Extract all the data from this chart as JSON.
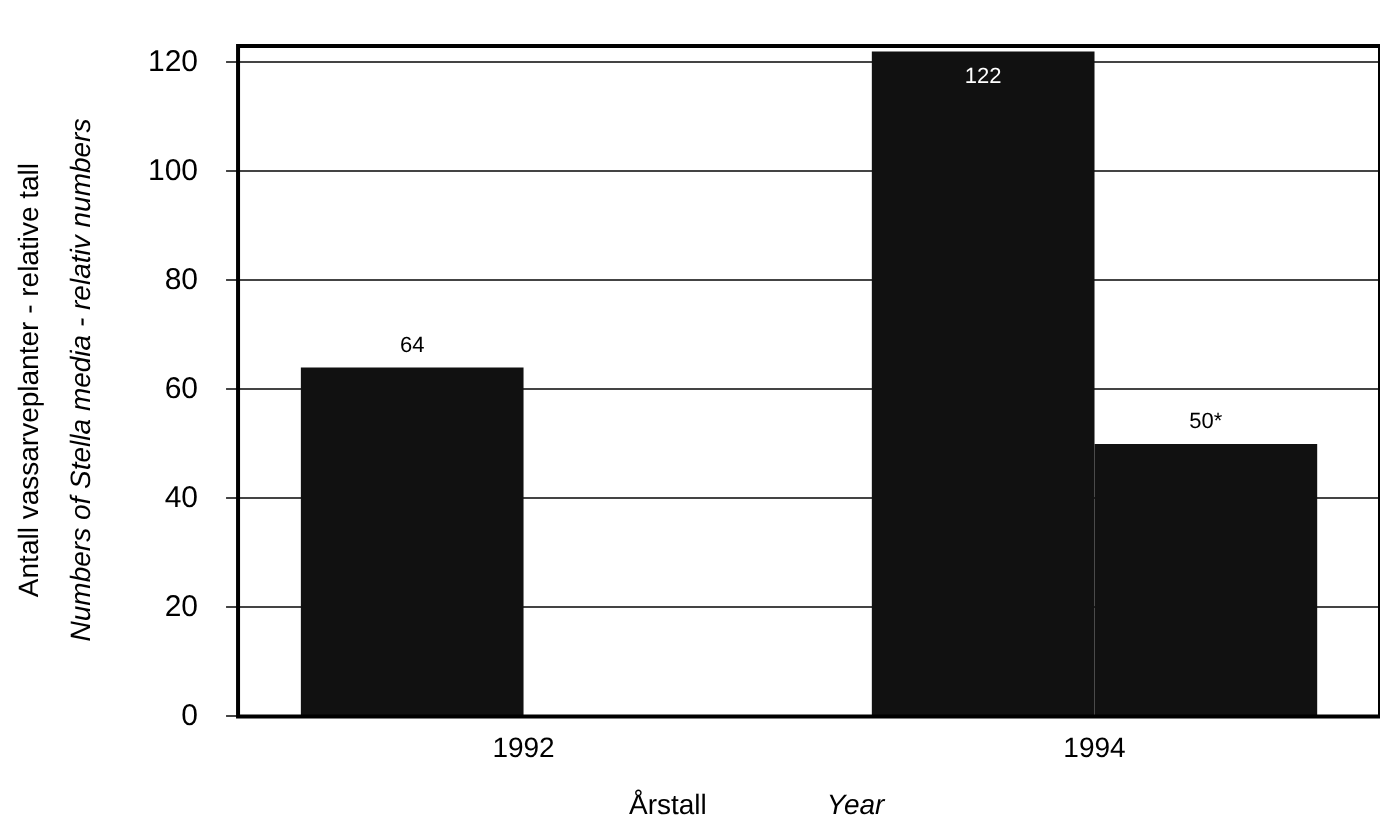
{
  "chart_data": {
    "type": "bar",
    "ylabel": "Antall vassarveplanter - relative tall\nNumbers of Stella media - relativ numbers",
    "xlabel": "Årstall\nYear",
    "categories": [
      "1992",
      "1994"
    ],
    "series": [
      {
        "color": "#111111",
        "values": [
          64,
          122
        ],
        "value_labels": [
          "64",
          "122"
        ]
      },
      {
        "color": "#111111",
        "values": [
          null,
          50
        ],
        "value_labels": [
          null,
          "50*"
        ]
      }
    ],
    "ylim": [
      0,
      123
    ],
    "yticks": [
      0,
      20,
      40,
      60,
      80,
      100,
      120
    ],
    "grid": "y",
    "legend": false
  }
}
